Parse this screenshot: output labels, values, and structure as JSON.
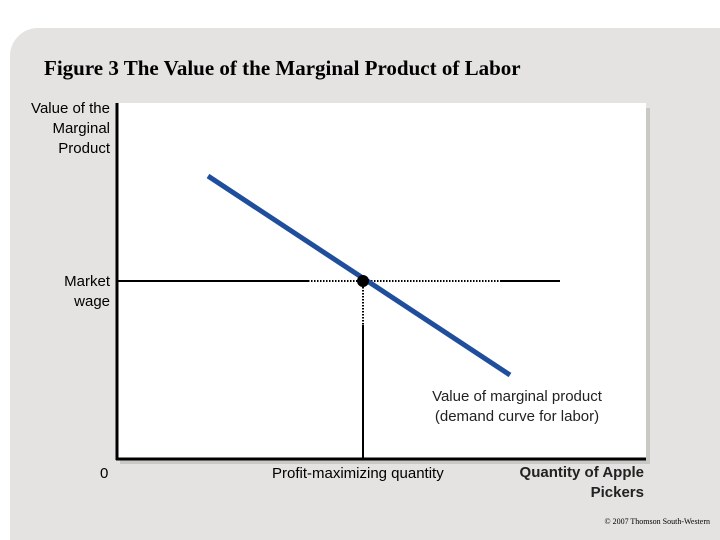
{
  "figure": {
    "title": "Figure 3 The Value of the Marginal Product of Labor",
    "y_axis_label": "Value of the Marginal Product",
    "x_axis_label": "Quantity of Apple Pickers",
    "origin_label": "0",
    "market_wage_label": "Market wage",
    "profit_max_label": "Profit-maximizing quantity",
    "curve_label": "Value of marginal product (demand curve for labor)",
    "copyright": "© 2007 Thomson South-Western"
  },
  "colors": {
    "curve": "#1f4e9c",
    "slide_background": "#e4e3e1",
    "plot_background": "#ffffff"
  }
}
